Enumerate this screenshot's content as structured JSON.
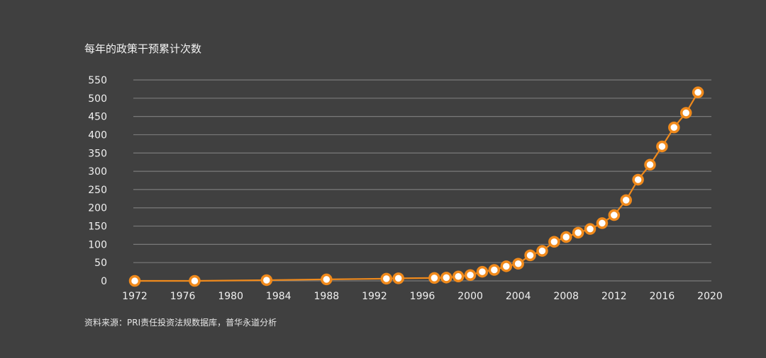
{
  "chart_data": {
    "type": "line",
    "title": "每年的政策干预累计次数",
    "source": "资料来源：PRI责任投资法规数据库，普华永道分析",
    "xlabel": "",
    "ylabel": "",
    "xlim": [
      1972,
      2020
    ],
    "ylim": [
      0,
      550
    ],
    "x_ticks": [
      1972,
      1976,
      1980,
      1984,
      1988,
      1992,
      1996,
      2000,
      2004,
      2008,
      2012,
      2016,
      2020
    ],
    "y_ticks": [
      0,
      50,
      100,
      150,
      200,
      250,
      300,
      350,
      400,
      450,
      500,
      550
    ],
    "grid": true,
    "legend": "none",
    "colors": {
      "background": "#404040",
      "line": "#f08a1c",
      "marker_fill": "#ffffff",
      "grid": "#7a7a7a",
      "text": "#f0f0f0"
    },
    "series": [
      {
        "x": [
          1972,
          1977,
          1983,
          1988,
          1993,
          1994,
          1997,
          1998,
          1999,
          2000,
          2001,
          2002,
          2003,
          2004,
          2005,
          2006,
          2007,
          2008,
          2009,
          2010,
          2011,
          2012,
          2013,
          2014,
          2015,
          2016,
          2017,
          2018,
          2019
        ],
        "values": [
          0,
          0,
          2,
          4,
          6,
          7,
          8,
          9,
          12,
          16,
          25,
          30,
          40,
          47,
          70,
          82,
          107,
          120,
          132,
          142,
          158,
          180,
          221,
          277,
          318,
          368,
          420,
          460,
          516
        ]
      }
    ]
  }
}
